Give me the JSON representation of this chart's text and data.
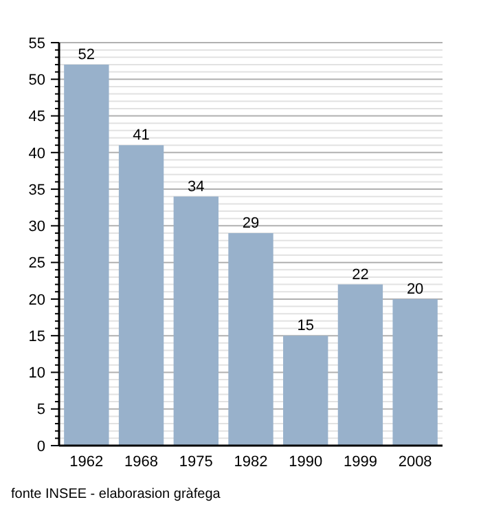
{
  "chart_data": {
    "type": "bar",
    "categories": [
      "1962",
      "1968",
      "1975",
      "1982",
      "1990",
      "1999",
      "2008"
    ],
    "values": [
      52,
      41,
      34,
      29,
      15,
      22,
      20
    ],
    "color": "#98b1cb",
    "data_labels": true,
    "ylim": [
      0,
      55
    ],
    "yticks": [
      0,
      5,
      10,
      15,
      20,
      25,
      30,
      35,
      40,
      45,
      50,
      55
    ],
    "grid": "y",
    "annotations": [
      "fonte INSEE - elaborasion gràfega"
    ]
  }
}
